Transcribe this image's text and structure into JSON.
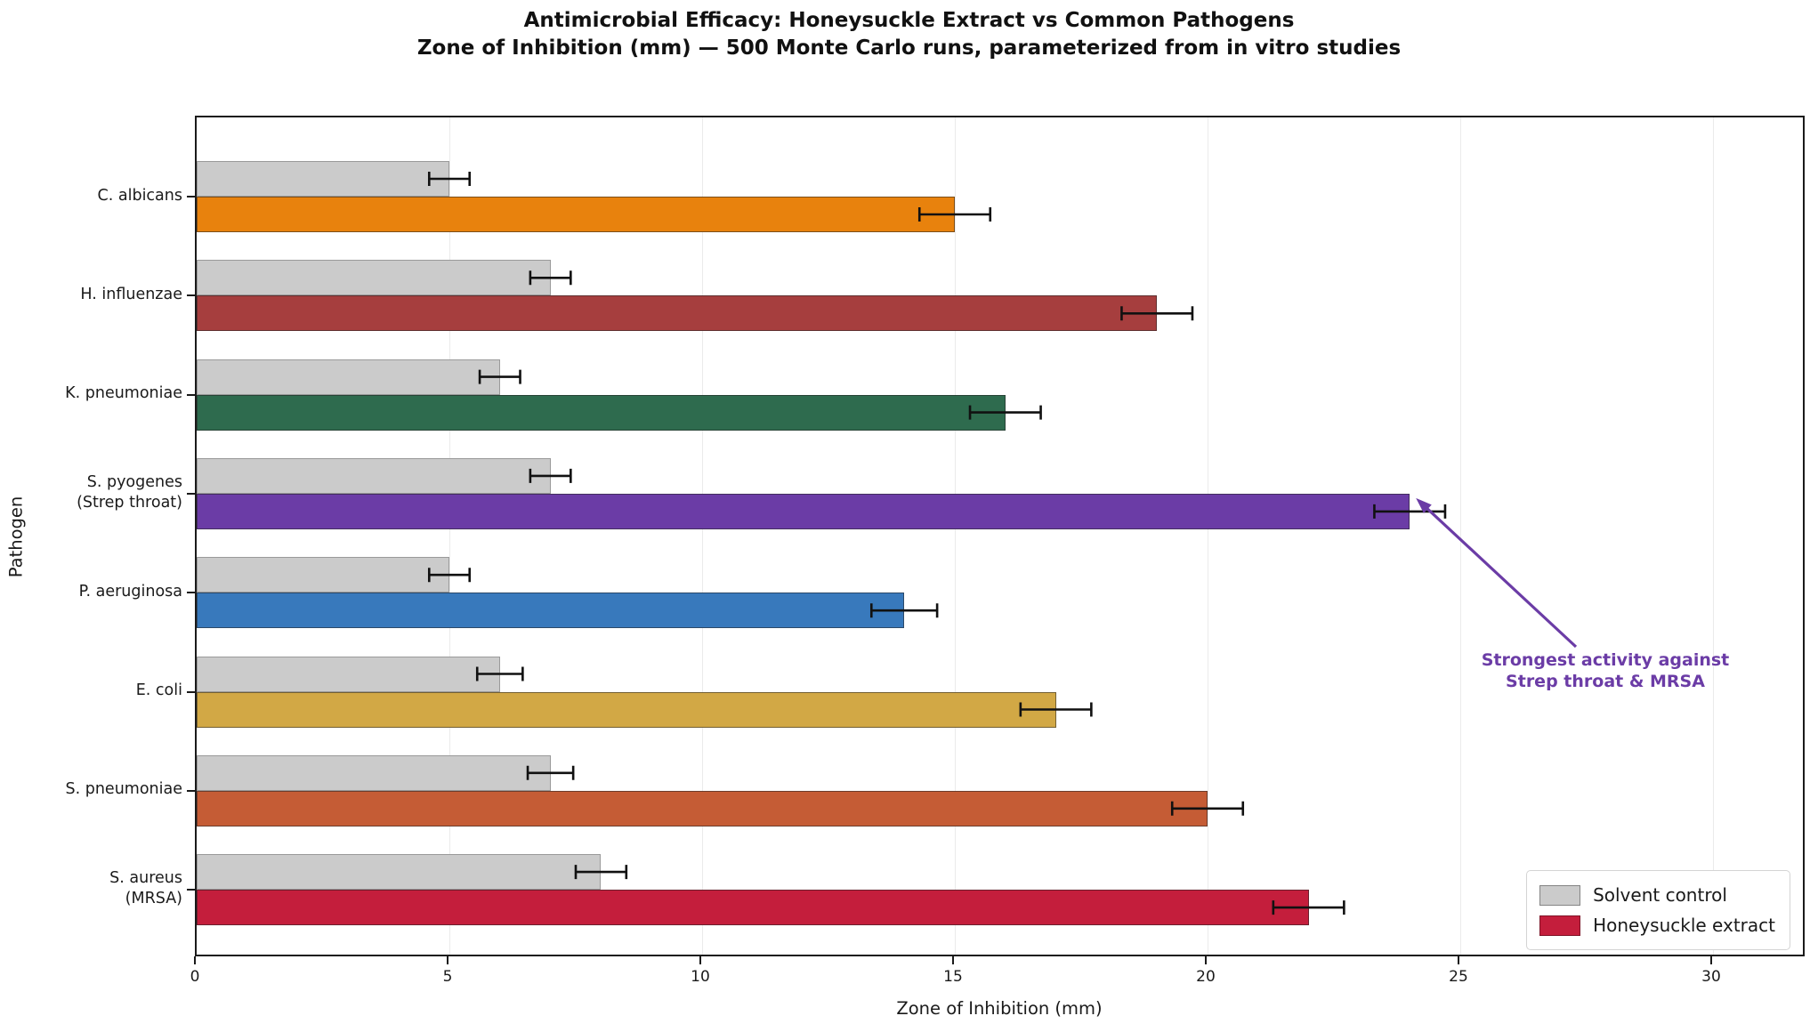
{
  "chart_data": {
    "type": "bar",
    "orientation": "horizontal",
    "title": "Antimicrobial Efficacy: Honeysuckle Extract vs Common Pathogens",
    "subtitle": "Zone of Inhibition (mm) — 500 Monte Carlo runs, parameterized from in vitro studies",
    "xlabel": "Zone of Inhibition (mm)",
    "ylabel": "Pathogen",
    "xticks": [
      0,
      5,
      10,
      15,
      20,
      25,
      30
    ],
    "xlim": [
      0,
      32
    ],
    "grid": true,
    "categories": [
      "C. albicans",
      "H. influenzae",
      "K. pneumoniae",
      "S. pyogenes\n(Strep throat)",
      "P. aeruginosa",
      "E. coli",
      "S. pneumoniae",
      "S. aureus\n(MRSA)"
    ],
    "series": [
      {
        "name": "Solvent control",
        "color": "#cbcbcb",
        "edge_color": "#9a9a9a",
        "values": [
          5.0,
          7.0,
          6.0,
          7.0,
          5.0,
          6.0,
          7.0,
          8.0
        ],
        "errors": [
          0.4,
          0.4,
          0.4,
          0.4,
          0.4,
          0.45,
          0.45,
          0.5
        ]
      },
      {
        "name": "Honeysuckle extract",
        "colors": [
          "#e8820d",
          "#a63e3e",
          "#2e6b4e",
          "#6b3ca6",
          "#3879bc",
          "#d2a845",
          "#c55c35",
          "#c41e3c"
        ],
        "values": [
          15.0,
          19.0,
          16.0,
          24.0,
          14.0,
          17.0,
          20.0,
          22.0
        ],
        "errors": [
          0.7,
          0.7,
          0.7,
          0.7,
          0.65,
          0.7,
          0.7,
          0.7
        ]
      }
    ],
    "annotation": {
      "line1": "Strongest activity against",
      "line2": "Strep throat & MRSA",
      "color": "#6b3ca6",
      "target": "tip of S. pyogenes extract bar (24 mm)"
    },
    "legend": {
      "position": "lower right",
      "items": [
        {
          "label": "Solvent control",
          "color": "#cbcbcb"
        },
        {
          "label": "Honeysuckle extract",
          "color": "#c41e3c"
        }
      ]
    }
  }
}
